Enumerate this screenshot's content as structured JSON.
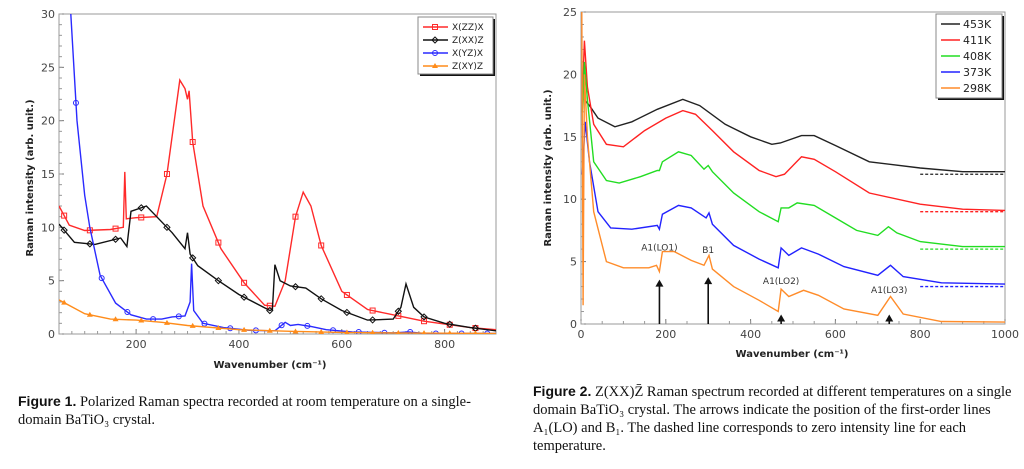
{
  "chart_data": [
    {
      "type": "line",
      "xlabel": "Wavenumber (cm⁻¹)",
      "ylabel": "Raman intensity (arb. unit.)",
      "xlim": [
        50,
        900
      ],
      "ylim": [
        0,
        30
      ],
      "xticks": [
        200,
        400,
        600,
        800
      ],
      "yticks": [
        0,
        5,
        10,
        15,
        20,
        25,
        30
      ],
      "grid": false,
      "legend": "top-right",
      "series": [
        {
          "name": "X(ZZ)X",
          "color": "#ff2a2a",
          "marker": "square",
          "points": [
            [
              50,
              12
            ],
            [
              70,
              10.2
            ],
            [
              100,
              9.7
            ],
            [
              150,
              9.8
            ],
            [
              175,
              10
            ],
            [
              178,
              15.2
            ],
            [
              181,
              10.8
            ],
            [
              200,
              10.9
            ],
            [
              240,
              11
            ],
            [
              260,
              15
            ],
            [
              285,
              23.8
            ],
            [
              295,
              23
            ],
            [
              300,
              22
            ],
            [
              303,
              22.8
            ],
            [
              310,
              18
            ],
            [
              330,
              12
            ],
            [
              365,
              8
            ],
            [
              410,
              4.8
            ],
            [
              450,
              2.7
            ],
            [
              470,
              2.6
            ],
            [
              490,
              5
            ],
            [
              510,
              11
            ],
            [
              525,
              13.3
            ],
            [
              540,
              12
            ],
            [
              560,
              8.3
            ],
            [
              600,
              4
            ],
            [
              650,
              2.3
            ],
            [
              700,
              1.8
            ],
            [
              760,
              1.2
            ],
            [
              850,
              0.6
            ],
            [
              900,
              0.4
            ]
          ]
        },
        {
          "name": "Z(XX)Z",
          "color": "#111111",
          "marker": "diamond",
          "points": [
            [
              50,
              10.3
            ],
            [
              80,
              8.6
            ],
            [
              120,
              8.4
            ],
            [
              170,
              9
            ],
            [
              182,
              8.2
            ],
            [
              190,
              11.5
            ],
            [
              220,
              12
            ],
            [
              240,
              11
            ],
            [
              270,
              9.5
            ],
            [
              295,
              8
            ],
            [
              300,
              9.5
            ],
            [
              305,
              7.5
            ],
            [
              320,
              6.4
            ],
            [
              360,
              5
            ],
            [
              400,
              3.7
            ],
            [
              460,
              2.2
            ],
            [
              465,
              2.3
            ],
            [
              470,
              6.5
            ],
            [
              480,
              5
            ],
            [
              500,
              4.5
            ],
            [
              530,
              4.3
            ],
            [
              560,
              3.3
            ],
            [
              600,
              2.2
            ],
            [
              650,
              1.3
            ],
            [
              700,
              1.4
            ],
            [
              715,
              2.5
            ],
            [
              725,
              4.7
            ],
            [
              740,
              2.5
            ],
            [
              760,
              1.6
            ],
            [
              800,
              1
            ],
            [
              850,
              0.6
            ],
            [
              900,
              0.3
            ]
          ]
        },
        {
          "name": "X(YZ)X",
          "color": "#2a2aff",
          "marker": "circle",
          "points": [
            [
              73,
              30
            ],
            [
              85,
              20
            ],
            [
              100,
              13
            ],
            [
              110,
              10
            ],
            [
              130,
              5.5
            ],
            [
              160,
              2.9
            ],
            [
              190,
              1.8
            ],
            [
              220,
              1.4
            ],
            [
              250,
              1.4
            ],
            [
              270,
              1.6
            ],
            [
              295,
              1.7
            ],
            [
              305,
              3
            ],
            [
              308,
              6.6
            ],
            [
              312,
              2.2
            ],
            [
              330,
              1
            ],
            [
              370,
              0.6
            ],
            [
              420,
              0.35
            ],
            [
              470,
              0.3
            ],
            [
              490,
              1.1
            ],
            [
              500,
              0.8
            ],
            [
              515,
              0.9
            ],
            [
              540,
              0.7
            ],
            [
              570,
              0.4
            ],
            [
              620,
              0.2
            ],
            [
              700,
              0.1
            ],
            [
              730,
              0.2
            ],
            [
              760,
              0.05
            ],
            [
              900,
              0.05
            ]
          ]
        },
        {
          "name": "Z(XY)Z",
          "color": "#ff8c1a",
          "marker": "triangle",
          "points": [
            [
              50,
              3.2
            ],
            [
              100,
              1.9
            ],
            [
              150,
              1.4
            ],
            [
              200,
              1.3
            ],
            [
              250,
              1.1
            ],
            [
              300,
              0.8
            ],
            [
              400,
              0.4
            ],
            [
              500,
              0.25
            ],
            [
              600,
              0.15
            ],
            [
              700,
              0.1
            ],
            [
              900,
              0.05
            ]
          ]
        }
      ]
    },
    {
      "type": "line",
      "xlabel": "Wavenumber (cm⁻¹)",
      "ylabel": "Raman intensity (arb. unit.)",
      "xlim": [
        0,
        1000
      ],
      "ylim": [
        0,
        25
      ],
      "xticks": [
        0,
        200,
        400,
        600,
        800,
        1000
      ],
      "yticks": [
        0,
        5,
        10,
        15,
        20,
        25
      ],
      "grid": false,
      "legend": "top-right",
      "series": [
        {
          "name": "453K",
          "color": "#222222",
          "zero_line": 12,
          "points": [
            [
              3,
              20
            ],
            [
              10,
              17.9
            ],
            [
              20,
              17.5
            ],
            [
              40,
              16.5
            ],
            [
              80,
              15.8
            ],
            [
              120,
              16.2
            ],
            [
              180,
              17.2
            ],
            [
              240,
              18
            ],
            [
              280,
              17.5
            ],
            [
              340,
              16
            ],
            [
              400,
              15
            ],
            [
              450,
              14.4
            ],
            [
              470,
              14.5
            ],
            [
              520,
              15.1
            ],
            [
              550,
              15.1
            ],
            [
              600,
              14.3
            ],
            [
              680,
              13
            ],
            [
              800,
              12.5
            ],
            [
              900,
              12.2
            ],
            [
              1000,
              12.2
            ]
          ]
        },
        {
          "name": "411K",
          "color": "#ff2222",
          "zero_line": 9,
          "points": [
            [
              3,
              18
            ],
            [
              8,
              22.7
            ],
            [
              15,
              19
            ],
            [
              30,
              16
            ],
            [
              60,
              14.4
            ],
            [
              100,
              14.2
            ],
            [
              150,
              15.5
            ],
            [
              200,
              16.5
            ],
            [
              240,
              17.1
            ],
            [
              270,
              16.8
            ],
            [
              310,
              15.5
            ],
            [
              360,
              13.8
            ],
            [
              420,
              12.3
            ],
            [
              460,
              11.8
            ],
            [
              480,
              12
            ],
            [
              520,
              13.4
            ],
            [
              550,
              13.2
            ],
            [
              600,
              12.2
            ],
            [
              680,
              10.5
            ],
            [
              800,
              9.6
            ],
            [
              900,
              9.2
            ],
            [
              1000,
              9.1
            ]
          ]
        },
        {
          "name": "408K",
          "color": "#22dd22",
          "zero_line": 6,
          "points": [
            [
              3,
              17
            ],
            [
              8,
              21
            ],
            [
              15,
              18
            ],
            [
              30,
              13
            ],
            [
              60,
              11.5
            ],
            [
              90,
              11.3
            ],
            [
              140,
              11.8
            ],
            [
              180,
              12.3
            ],
            [
              185,
              12.3
            ],
            [
              192,
              13
            ],
            [
              230,
              13.8
            ],
            [
              260,
              13.5
            ],
            [
              290,
              12.4
            ],
            [
              300,
              12.7
            ],
            [
              310,
              12.2
            ],
            [
              360,
              10.5
            ],
            [
              420,
              9
            ],
            [
              465,
              8.2
            ],
            [
              472,
              9.3
            ],
            [
              490,
              9.3
            ],
            [
              510,
              9.7
            ],
            [
              550,
              9.5
            ],
            [
              600,
              8.5
            ],
            [
              650,
              7.5
            ],
            [
              700,
              7.1
            ],
            [
              725,
              7.8
            ],
            [
              745,
              7.3
            ],
            [
              800,
              6.6
            ],
            [
              900,
              6.2
            ],
            [
              1000,
              6.2
            ]
          ]
        },
        {
          "name": "373K",
          "color": "#2222ff",
          "zero_line": 3,
          "points": [
            [
              3,
              12
            ],
            [
              10,
              16.2
            ],
            [
              20,
              13
            ],
            [
              40,
              9
            ],
            [
              70,
              7.7
            ],
            [
              120,
              7.6
            ],
            [
              180,
              7.9
            ],
            [
              185,
              7.6
            ],
            [
              192,
              8.8
            ],
            [
              230,
              9.5
            ],
            [
              260,
              9.3
            ],
            [
              295,
              8.5
            ],
            [
              302,
              8.9
            ],
            [
              310,
              8
            ],
            [
              360,
              6.3
            ],
            [
              420,
              5.2
            ],
            [
              465,
              4.5
            ],
            [
              472,
              6.1
            ],
            [
              490,
              5.5
            ],
            [
              520,
              6.1
            ],
            [
              560,
              5.6
            ],
            [
              620,
              4.6
            ],
            [
              700,
              3.9
            ],
            [
              730,
              4.7
            ],
            [
              760,
              3.8
            ],
            [
              850,
              3.3
            ],
            [
              1000,
              3.2
            ]
          ]
        },
        {
          "name": "298K",
          "color": "#ff8c2a",
          "zero_line": 0,
          "points": [
            [
              2,
              25
            ],
            [
              5,
              1.5
            ],
            [
              8,
              20
            ],
            [
              15,
              15
            ],
            [
              30,
              9
            ],
            [
              60,
              5
            ],
            [
              100,
              4.5
            ],
            [
              160,
              4.5
            ],
            [
              178,
              4.7
            ],
            [
              185,
              4.2
            ],
            [
              192,
              5.8
            ],
            [
              220,
              5.8
            ],
            [
              260,
              5.1
            ],
            [
              290,
              4.7
            ],
            [
              302,
              5.5
            ],
            [
              310,
              4.4
            ],
            [
              360,
              3
            ],
            [
              420,
              1.9
            ],
            [
              465,
              1
            ],
            [
              472,
              2.8
            ],
            [
              490,
              2.2
            ],
            [
              525,
              2.7
            ],
            [
              560,
              2.3
            ],
            [
              620,
              1.2
            ],
            [
              700,
              0.7
            ],
            [
              730,
              2.2
            ],
            [
              760,
              0.8
            ],
            [
              850,
              0.2
            ],
            [
              1000,
              0.15
            ]
          ]
        }
      ],
      "annotations": [
        {
          "label": "A1(LO1)",
          "x": 185,
          "arrow_top": 3.4,
          "label_y": 5.9
        },
        {
          "label": "B1",
          "x": 300,
          "arrow_top": 3.6,
          "label_y": 5.7
        },
        {
          "label": "A1(LO2)",
          "x": 472,
          "arrow_top": 0.6,
          "label_y": 3.2
        },
        {
          "label": "A1(LO3)",
          "x": 727,
          "arrow_top": 0.6,
          "label_y": 2.5
        }
      ]
    }
  ],
  "captions": {
    "fig1_label": "Figure 1.",
    "fig1_text": "Polarized Raman spectra recorded at room temperature on a single-domain BaTiO₃ crystal.",
    "fig2_label": "Figure 2.",
    "fig2_text": "Z(XX)Z̄ Raman spectrum recorded at different temperatures on a single domain BaTiO₃ crystal. The arrows indicate the position of the first-order lines A₁(LO) and B₁. The dashed line corresponds to zero intensity line for each temperature."
  }
}
